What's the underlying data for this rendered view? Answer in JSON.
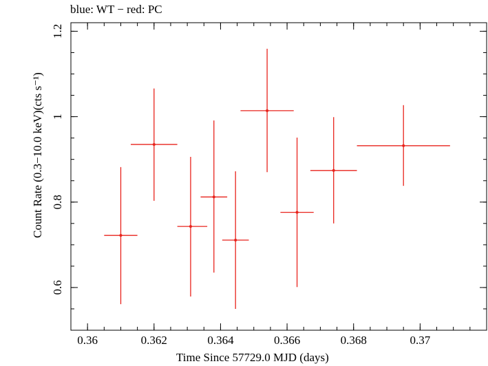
{
  "chart_data": {
    "type": "scatter",
    "title": "blue: WT − red: PC",
    "xlabel": "Time Since 57729.0 MJD (days)",
    "ylabel": "Count Rate (0.3−10.0 keV)(cts s⁻¹)",
    "xlim": [
      0.3595,
      0.372
    ],
    "ylim": [
      0.5,
      1.22
    ],
    "xticks": [
      0.36,
      0.362,
      0.364,
      0.366,
      0.368,
      0.37
    ],
    "xtick_labels": [
      "0.36",
      "0.362",
      "0.364",
      "0.366",
      "0.368",
      "0.37"
    ],
    "yticks": [
      0.6,
      0.8,
      1.0,
      1.2
    ],
    "ytick_labels": [
      "0.6",
      "0.8",
      "1",
      "1.2"
    ],
    "grid": false,
    "series": [
      {
        "color": "#e8221b",
        "points": [
          {
            "x": 0.361,
            "xerr_lo": 0.0005,
            "xerr_hi": 0.0005,
            "y": 0.722,
            "yerr_lo": 0.161,
            "yerr_hi": 0.16
          },
          {
            "x": 0.362,
            "xerr_lo": 0.0007,
            "xerr_hi": 0.0007,
            "y": 0.935,
            "yerr_lo": 0.132,
            "yerr_hi": 0.131
          },
          {
            "x": 0.3631,
            "xerr_lo": 0.0004,
            "xerr_hi": 0.0005,
            "y": 0.743,
            "yerr_lo": 0.164,
            "yerr_hi": 0.163
          },
          {
            "x": 0.3638,
            "xerr_lo": 0.0004,
            "xerr_hi": 0.0004,
            "y": 0.812,
            "yerr_lo": 0.177,
            "yerr_hi": 0.179
          },
          {
            "x": 0.36445,
            "xerr_lo": 0.0004,
            "xerr_hi": 0.0004,
            "y": 0.711,
            "yerr_lo": 0.161,
            "yerr_hi": 0.161
          },
          {
            "x": 0.3654,
            "xerr_lo": 0.0008,
            "xerr_hi": 0.0008,
            "y": 1.014,
            "yerr_lo": 0.144,
            "yerr_hi": 0.145
          },
          {
            "x": 0.3663,
            "xerr_lo": 0.0005,
            "xerr_hi": 0.0005,
            "y": 0.776,
            "yerr_lo": 0.175,
            "yerr_hi": 0.175
          },
          {
            "x": 0.3674,
            "xerr_lo": 0.0007,
            "xerr_hi": 0.0007,
            "y": 0.874,
            "yerr_lo": 0.124,
            "yerr_hi": 0.125
          },
          {
            "x": 0.3695,
            "xerr_lo": 0.0014,
            "xerr_hi": 0.0014,
            "y": 0.932,
            "yerr_lo": 0.094,
            "yerr_hi": 0.095
          }
        ]
      }
    ]
  }
}
